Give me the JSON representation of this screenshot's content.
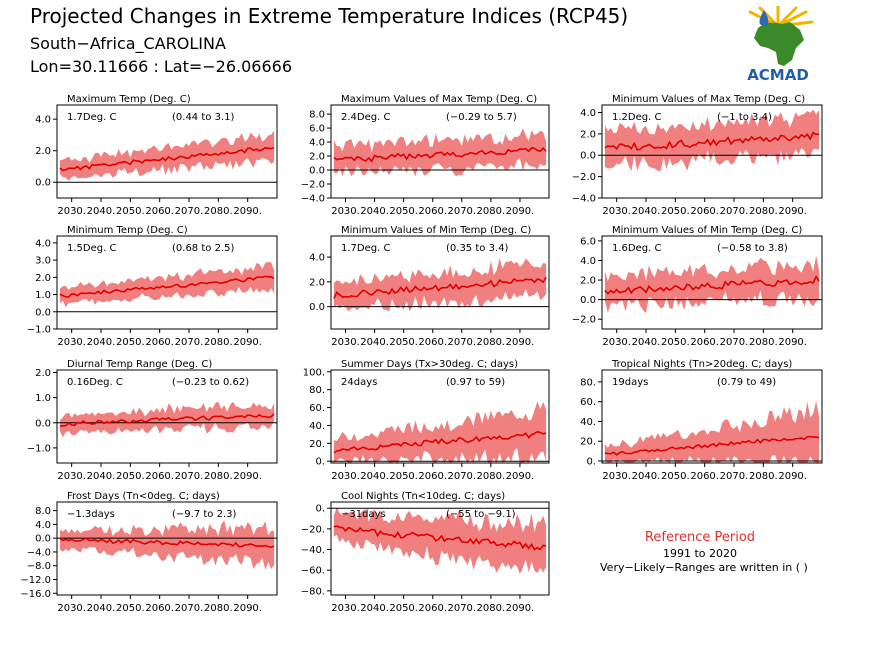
{
  "header": {
    "title": "Projected Changes in Extreme Temperature Indices (RCP45)",
    "subtitle": "South−Africa_CAROLINA",
    "location": "Lon=30.11666 : Lat=−26.06666"
  },
  "logo": {
    "text": "ACMAD",
    "colors": {
      "africa": "#3a8a2a",
      "drop": "#2a6ab0",
      "text": "#1f5fa8",
      "rays": "#f0b400"
    }
  },
  "colors": {
    "band": "#f08080",
    "line": "#e00000",
    "zero": "#000000"
  },
  "reference": {
    "title": "Reference Period",
    "years": "1991 to 2020",
    "note": "Very−Likely−Ranges are written in ( )"
  },
  "chart_data": [
    {
      "type": "area",
      "title": "Maximum Temp (Deg. C)",
      "mean_label": "1.7Deg. C",
      "range_label": "(0.44 to 3.1)",
      "xlim": [
        2025,
        2100
      ],
      "ylim": [
        -1.0,
        4.9
      ],
      "yticks": [
        "4.0",
        "2.0",
        "0.0"
      ],
      "ytick_values": [
        4,
        2,
        0
      ],
      "xticks": [
        "2030.",
        "2040.",
        "2050.",
        "2060.",
        "2070.",
        "2080.",
        "2090."
      ],
      "trend": {
        "start": 0.8,
        "end": 2.2,
        "start_halfwidth": 0.6,
        "end_halfwidth": 0.85
      },
      "seed": 11
    },
    {
      "type": "area",
      "title": "Maximum Values of Max Temp (Deg. C)",
      "mean_label": "2.4Deg. C",
      "range_label": "(−0.29 to 5.7)",
      "xlim": [
        2025,
        2100
      ],
      "ylim": [
        -4.0,
        9.3
      ],
      "yticks": [
        "8.0",
        "6.0",
        "4.0",
        "2.0",
        "0.0",
        "−2.0",
        "−4.0"
      ],
      "ytick_values": [
        8,
        6,
        4,
        2,
        0,
        -2,
        -4
      ],
      "xticks": [
        "2030.",
        "2040.",
        "2050.",
        "2060.",
        "2070.",
        "2080.",
        "2090."
      ],
      "trend": {
        "start": 1.4,
        "end": 3.0,
        "start_halfwidth": 2.0,
        "end_halfwidth": 2.4
      },
      "seed": 23
    },
    {
      "type": "area",
      "title": "Minimum Values of Max Temp (Deg. C)",
      "mean_label": "1.2Deg. C",
      "range_label": "(−1 to 3.4)",
      "xlim": [
        2025,
        2100
      ],
      "ylim": [
        -4.0,
        4.7
      ],
      "yticks": [
        "4.0",
        "2.0",
        "0.0",
        "−2.0",
        "−4.0"
      ],
      "ytick_values": [
        4,
        2,
        0,
        -2,
        -4
      ],
      "xticks": [
        "2030.",
        "2040.",
        "2050.",
        "2060.",
        "2070.",
        "2080.",
        "2090."
      ],
      "trend": {
        "start": 0.6,
        "end": 1.9,
        "start_halfwidth": 1.6,
        "end_halfwidth": 1.9
      },
      "seed": 37
    },
    {
      "type": "area",
      "title": "Minimum Temp (Deg. C)",
      "mean_label": "1.5Deg. C",
      "range_label": "(0.68 to 2.5)",
      "xlim": [
        2025,
        2100
      ],
      "ylim": [
        -1.0,
        4.4
      ],
      "yticks": [
        "4.0",
        "3.0",
        "2.0",
        "1.0",
        "0.0",
        "−1.0"
      ],
      "ytick_values": [
        4,
        3,
        2,
        1,
        0,
        -1
      ],
      "xticks": [
        "2030.",
        "2040.",
        "2050.",
        "2060.",
        "2070.",
        "2080.",
        "2090."
      ],
      "trend": {
        "start": 0.9,
        "end": 2.0,
        "start_halfwidth": 0.5,
        "end_halfwidth": 0.7
      },
      "seed": 41
    },
    {
      "type": "area",
      "title": "Minimum Values of Min Temp (Deg. C)",
      "mean_label": "1.7Deg. C",
      "range_label": "(0.35 to 3.4)",
      "xlim": [
        2025,
        2100
      ],
      "ylim": [
        -1.8,
        5.7
      ],
      "yticks": [
        "4.0",
        "2.0",
        "0.0"
      ],
      "ytick_values": [
        4,
        2,
        0
      ],
      "xticks": [
        "2030.",
        "2040.",
        "2050.",
        "2060.",
        "2070.",
        "2080.",
        "2090."
      ],
      "trend": {
        "start": 0.9,
        "end": 2.2,
        "start_halfwidth": 1.1,
        "end_halfwidth": 1.4
      },
      "seed": 53
    },
    {
      "type": "area",
      "title": "Minimum Values of Min Temp (Deg. C)",
      "mean_label": "1.6Deg. C",
      "range_label": "(−0.58 to 3.8)",
      "xlim": [
        2025,
        2100
      ],
      "ylim": [
        -3.0,
        6.5
      ],
      "yticks": [
        "6.0",
        "4.0",
        "2.0",
        "0.0",
        "−2.0"
      ],
      "ytick_values": [
        6,
        4,
        2,
        0,
        -2
      ],
      "xticks": [
        "2030.",
        "2040.",
        "2050.",
        "2060.",
        "2070.",
        "2080.",
        "2090."
      ],
      "trend": {
        "start": 0.8,
        "end": 2.0,
        "start_halfwidth": 1.6,
        "end_halfwidth": 1.9
      },
      "seed": 67
    },
    {
      "type": "area",
      "title": "Diurnal Temp Range (Deg. C)",
      "mean_label": "0.16Deg. C",
      "range_label": "(−0.23 to 0.62)",
      "xlim": [
        2025,
        2100
      ],
      "ylim": [
        -1.6,
        2.1
      ],
      "yticks": [
        "2.0",
        "1.0",
        "0.0",
        "−1.0"
      ],
      "ytick_values": [
        2,
        1,
        0,
        -1
      ],
      "xticks": [
        "2030.",
        "2040.",
        "2050.",
        "2060.",
        "2070.",
        "2080.",
        "2090."
      ],
      "trend": {
        "start": -0.05,
        "end": 0.3,
        "start_halfwidth": 0.35,
        "end_halfwidth": 0.5
      },
      "seed": 71
    },
    {
      "type": "area",
      "title": "Summer Days (Tx>30deg. C; days)",
      "mean_label": "24days",
      "range_label": "(0.97 to 59)",
      "xlim": [
        2025,
        2100
      ],
      "ylim": [
        -2,
        102
      ],
      "yticks": [
        "100.",
        "80.",
        "60.",
        "40.",
        "20.",
        "0."
      ],
      "ytick_values": [
        100,
        80,
        60,
        40,
        20,
        0
      ],
      "xticks": [
        "2030.",
        "2040.",
        "2050.",
        "2060.",
        "2070.",
        "2080.",
        "2090."
      ],
      "trend": {
        "start": 12,
        "end": 31,
        "start_halfwidth": 14,
        "end_halfwidth": 28
      },
      "seed": 83
    },
    {
      "type": "area",
      "title": "Tropical Nights (Tn>20deg. C; days)",
      "mean_label": "19days",
      "range_label": "(0.79 to 49)",
      "xlim": [
        2025,
        2100
      ],
      "ylim": [
        -2,
        92
      ],
      "yticks": [
        "80.",
        "60.",
        "40.",
        "20.",
        "0."
      ],
      "ytick_values": [
        80,
        60,
        40,
        20,
        0
      ],
      "xticks": [
        "2030.",
        "2040.",
        "2050.",
        "2060.",
        "2070.",
        "2080.",
        "2090."
      ],
      "trend": {
        "start": 7,
        "end": 25,
        "start_halfwidth": 8,
        "end_halfwidth": 28
      },
      "seed": 97
    },
    {
      "type": "area",
      "title": "Frost Days (Tn<0deg. C; days)",
      "mean_label": "−1.3days",
      "range_label": "(−9.7 to 2.3)",
      "xlim": [
        2025,
        2100
      ],
      "ylim": [
        -16.5,
        10.5
      ],
      "yticks": [
        "8.0",
        "4.0",
        "0.0",
        "−4.0",
        "−8.0",
        "−12.0",
        "−16.0"
      ],
      "ytick_values": [
        8,
        4,
        0,
        -4,
        -8,
        -12,
        -16
      ],
      "xticks": [
        "2030.",
        "2040.",
        "2050.",
        "2060.",
        "2070.",
        "2080.",
        "2090."
      ],
      "trend": {
        "start": -0.4,
        "end": -2.2,
        "start_halfwidth": 2.6,
        "end_halfwidth": 5.6
      },
      "seed": 103
    },
    {
      "type": "area",
      "title": "Cool Nights (Tn<10deg. C; days)",
      "mean_label": "−31days",
      "range_label": "(−55 to −9.1)",
      "xlim": [
        2025,
        2100
      ],
      "ylim": [
        -84,
        6
      ],
      "yticks": [
        "0.",
        "−20.",
        "−40.",
        "−60.",
        "−80."
      ],
      "ytick_values": [
        0,
        -20,
        -40,
        -60,
        -80
      ],
      "xticks": [
        "2030.",
        "2040.",
        "2050.",
        "2060.",
        "2070.",
        "2080.",
        "2090."
      ],
      "trend": {
        "start": -20,
        "end": -38,
        "start_halfwidth": 14,
        "end_halfwidth": 24
      },
      "seed": 109
    }
  ]
}
